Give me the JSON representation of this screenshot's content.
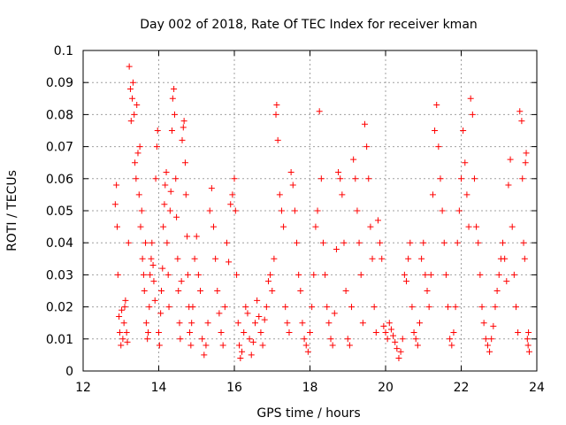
{
  "chart_data": {
    "type": "scatter",
    "title": "Day 002 of 2018, Rate Of TEC Index for receiver kman",
    "xlabel": "GPS time / hours",
    "ylabel": "ROTI / TECUs",
    "xlim": [
      12,
      24
    ],
    "ylim": [
      0,
      0.1
    ],
    "xticks": [
      "12",
      "14",
      "16",
      "18",
      "20",
      "22",
      "24"
    ],
    "yticks": [
      "0",
      "0.01",
      "0.02",
      "0.03",
      "0.04",
      "0.05",
      "0.06",
      "0.07",
      "0.08",
      "0.09",
      "0.1"
    ],
    "grid": true,
    "marker": "+",
    "series": [
      {
        "name": "ROTI",
        "color": "#ff0000",
        "points": [
          [
            12.85,
            0.052
          ],
          [
            12.88,
            0.058
          ],
          [
            12.9,
            0.045
          ],
          [
            12.92,
            0.03
          ],
          [
            12.95,
            0.017
          ],
          [
            12.97,
            0.012
          ],
          [
            13.0,
            0.008
          ],
          [
            13.02,
            0.019
          ],
          [
            13.05,
            0.01
          ],
          [
            13.08,
            0.015
          ],
          [
            13.1,
            0.02
          ],
          [
            13.12,
            0.022
          ],
          [
            13.15,
            0.012
          ],
          [
            13.17,
            0.009
          ],
          [
            13.2,
            0.04
          ],
          [
            13.22,
            0.095
          ],
          [
            13.25,
            0.088
          ],
          [
            13.27,
            0.078
          ],
          [
            13.3,
            0.085
          ],
          [
            13.32,
            0.09
          ],
          [
            13.35,
            0.08
          ],
          [
            13.37,
            0.065
          ],
          [
            13.4,
            0.06
          ],
          [
            13.42,
            0.083
          ],
          [
            13.45,
            0.068
          ],
          [
            13.48,
            0.055
          ],
          [
            13.5,
            0.07
          ],
          [
            13.52,
            0.045
          ],
          [
            13.55,
            0.05
          ],
          [
            13.57,
            0.035
          ],
          [
            13.6,
            0.03
          ],
          [
            13.62,
            0.025
          ],
          [
            13.65,
            0.04
          ],
          [
            13.67,
            0.015
          ],
          [
            13.7,
            0.01
          ],
          [
            13.72,
            0.012
          ],
          [
            13.75,
            0.02
          ],
          [
            13.77,
            0.03
          ],
          [
            13.8,
            0.035
          ],
          [
            13.82,
            0.04
          ],
          [
            13.85,
            0.033
          ],
          [
            13.87,
            0.028
          ],
          [
            13.9,
            0.022
          ],
          [
            13.92,
            0.06
          ],
          [
            13.95,
            0.07
          ],
          [
            13.97,
            0.075
          ],
          [
            14.0,
            0.012
          ],
          [
            14.02,
            0.008
          ],
          [
            14.05,
            0.018
          ],
          [
            14.07,
            0.025
          ],
          [
            14.1,
            0.032
          ],
          [
            14.12,
            0.045
          ],
          [
            14.15,
            0.052
          ],
          [
            14.17,
            0.058
          ],
          [
            14.2,
            0.062
          ],
          [
            14.22,
            0.04
          ],
          [
            14.25,
            0.03
          ],
          [
            14.27,
            0.02
          ],
          [
            14.3,
            0.05
          ],
          [
            14.32,
            0.056
          ],
          [
            14.35,
            0.075
          ],
          [
            14.37,
            0.085
          ],
          [
            14.4,
            0.088
          ],
          [
            14.42,
            0.08
          ],
          [
            14.45,
            0.06
          ],
          [
            14.47,
            0.048
          ],
          [
            14.5,
            0.035
          ],
          [
            14.52,
            0.025
          ],
          [
            14.55,
            0.015
          ],
          [
            14.57,
            0.01
          ],
          [
            14.6,
            0.028
          ],
          [
            14.62,
            0.072
          ],
          [
            14.65,
            0.076
          ],
          [
            14.67,
            0.078
          ],
          [
            14.7,
            0.065
          ],
          [
            14.72,
            0.055
          ],
          [
            14.75,
            0.042
          ],
          [
            14.77,
            0.03
          ],
          [
            14.8,
            0.02
          ],
          [
            14.82,
            0.012
          ],
          [
            14.85,
            0.008
          ],
          [
            14.87,
            0.015
          ],
          [
            14.9,
            0.02
          ],
          [
            14.95,
            0.035
          ],
          [
            15.0,
            0.042
          ],
          [
            15.05,
            0.03
          ],
          [
            15.1,
            0.025
          ],
          [
            15.15,
            0.01
          ],
          [
            15.2,
            0.005
          ],
          [
            15.25,
            0.008
          ],
          [
            15.3,
            0.015
          ],
          [
            15.35,
            0.05
          ],
          [
            15.4,
            0.057
          ],
          [
            15.45,
            0.045
          ],
          [
            15.5,
            0.035
          ],
          [
            15.55,
            0.025
          ],
          [
            15.6,
            0.018
          ],
          [
            15.65,
            0.012
          ],
          [
            15.7,
            0.008
          ],
          [
            15.75,
            0.02
          ],
          [
            15.8,
            0.04
          ],
          [
            15.85,
            0.034
          ],
          [
            15.9,
            0.052
          ],
          [
            15.95,
            0.055
          ],
          [
            16.0,
            0.06
          ],
          [
            16.03,
            0.05
          ],
          [
            16.06,
            0.03
          ],
          [
            16.1,
            0.015
          ],
          [
            16.13,
            0.008
          ],
          [
            16.16,
            0.004
          ],
          [
            16.2,
            0.006
          ],
          [
            16.25,
            0.012
          ],
          [
            16.3,
            0.02
          ],
          [
            16.35,
            0.018
          ],
          [
            16.4,
            0.01
          ],
          [
            16.45,
            0.005
          ],
          [
            16.5,
            0.009
          ],
          [
            16.55,
            0.015
          ],
          [
            16.6,
            0.022
          ],
          [
            16.65,
            0.017
          ],
          [
            16.7,
            0.012
          ],
          [
            16.75,
            0.008
          ],
          [
            16.8,
            0.016
          ],
          [
            16.85,
            0.02
          ],
          [
            16.9,
            0.028
          ],
          [
            16.95,
            0.03
          ],
          [
            17.0,
            0.025
          ],
          [
            17.05,
            0.035
          ],
          [
            17.1,
            0.08
          ],
          [
            17.12,
            0.083
          ],
          [
            17.15,
            0.072
          ],
          [
            17.2,
            0.055
          ],
          [
            17.25,
            0.05
          ],
          [
            17.3,
            0.045
          ],
          [
            17.35,
            0.02
          ],
          [
            17.4,
            0.015
          ],
          [
            17.45,
            0.012
          ],
          [
            17.5,
            0.062
          ],
          [
            17.55,
            0.058
          ],
          [
            17.6,
            0.05
          ],
          [
            17.65,
            0.04
          ],
          [
            17.7,
            0.03
          ],
          [
            17.75,
            0.025
          ],
          [
            17.8,
            0.015
          ],
          [
            17.85,
            0.01
          ],
          [
            17.9,
            0.008
          ],
          [
            17.95,
            0.006
          ],
          [
            18.0,
            0.012
          ],
          [
            18.05,
            0.02
          ],
          [
            18.1,
            0.03
          ],
          [
            18.15,
            0.045
          ],
          [
            18.2,
            0.05
          ],
          [
            18.25,
            0.081
          ],
          [
            18.3,
            0.06
          ],
          [
            18.35,
            0.04
          ],
          [
            18.4,
            0.03
          ],
          [
            18.45,
            0.02
          ],
          [
            18.5,
            0.015
          ],
          [
            18.55,
            0.01
          ],
          [
            18.6,
            0.008
          ],
          [
            18.65,
            0.018
          ],
          [
            18.7,
            0.038
          ],
          [
            18.75,
            0.062
          ],
          [
            18.8,
            0.06
          ],
          [
            18.85,
            0.055
          ],
          [
            18.9,
            0.04
          ],
          [
            18.95,
            0.025
          ],
          [
            19.0,
            0.01
          ],
          [
            19.05,
            0.008
          ],
          [
            19.1,
            0.02
          ],
          [
            19.15,
            0.066
          ],
          [
            19.2,
            0.06
          ],
          [
            19.25,
            0.05
          ],
          [
            19.3,
            0.04
          ],
          [
            19.35,
            0.03
          ],
          [
            19.4,
            0.015
          ],
          [
            19.45,
            0.077
          ],
          [
            19.5,
            0.07
          ],
          [
            19.55,
            0.06
          ],
          [
            19.6,
            0.045
          ],
          [
            19.65,
            0.035
          ],
          [
            19.7,
            0.02
          ],
          [
            19.75,
            0.012
          ],
          [
            19.8,
            0.047
          ],
          [
            19.85,
            0.04
          ],
          [
            19.9,
            0.035
          ],
          [
            19.95,
            0.014
          ],
          [
            20.0,
            0.012
          ],
          [
            20.05,
            0.01
          ],
          [
            20.1,
            0.015
          ],
          [
            20.15,
            0.013
          ],
          [
            20.2,
            0.011
          ],
          [
            20.25,
            0.009
          ],
          [
            20.3,
            0.007
          ],
          [
            20.35,
            0.004
          ],
          [
            20.4,
            0.006
          ],
          [
            20.45,
            0.01
          ],
          [
            20.5,
            0.03
          ],
          [
            20.55,
            0.028
          ],
          [
            20.6,
            0.035
          ],
          [
            20.65,
            0.04
          ],
          [
            20.7,
            0.02
          ],
          [
            20.75,
            0.012
          ],
          [
            20.8,
            0.01
          ],
          [
            20.85,
            0.008
          ],
          [
            20.9,
            0.015
          ],
          [
            20.95,
            0.035
          ],
          [
            21.0,
            0.04
          ],
          [
            21.05,
            0.03
          ],
          [
            21.1,
            0.025
          ],
          [
            21.15,
            0.02
          ],
          [
            21.2,
            0.03
          ],
          [
            21.25,
            0.055
          ],
          [
            21.3,
            0.075
          ],
          [
            21.35,
            0.083
          ],
          [
            21.4,
            0.07
          ],
          [
            21.45,
            0.06
          ],
          [
            21.5,
            0.05
          ],
          [
            21.55,
            0.04
          ],
          [
            21.6,
            0.03
          ],
          [
            21.65,
            0.02
          ],
          [
            21.7,
            0.01
          ],
          [
            21.75,
            0.008
          ],
          [
            21.8,
            0.012
          ],
          [
            21.85,
            0.02
          ],
          [
            21.9,
            0.04
          ],
          [
            21.95,
            0.05
          ],
          [
            22.0,
            0.06
          ],
          [
            22.05,
            0.075
          ],
          [
            22.1,
            0.065
          ],
          [
            22.15,
            0.055
          ],
          [
            22.2,
            0.045
          ],
          [
            22.25,
            0.085
          ],
          [
            22.3,
            0.08
          ],
          [
            22.35,
            0.06
          ],
          [
            22.4,
            0.045
          ],
          [
            22.45,
            0.04
          ],
          [
            22.5,
            0.03
          ],
          [
            22.55,
            0.02
          ],
          [
            22.6,
            0.015
          ],
          [
            22.65,
            0.01
          ],
          [
            22.7,
            0.008
          ],
          [
            22.75,
            0.006
          ],
          [
            22.8,
            0.01
          ],
          [
            22.85,
            0.014
          ],
          [
            22.9,
            0.02
          ],
          [
            22.95,
            0.025
          ],
          [
            23.0,
            0.03
          ],
          [
            23.05,
            0.035
          ],
          [
            23.1,
            0.04
          ],
          [
            23.15,
            0.035
          ],
          [
            23.2,
            0.028
          ],
          [
            23.25,
            0.058
          ],
          [
            23.3,
            0.066
          ],
          [
            23.35,
            0.045
          ],
          [
            23.4,
            0.03
          ],
          [
            23.45,
            0.02
          ],
          [
            23.5,
            0.012
          ],
          [
            23.55,
            0.081
          ],
          [
            23.6,
            0.078
          ],
          [
            23.62,
            0.06
          ],
          [
            23.65,
            0.04
          ],
          [
            23.68,
            0.035
          ],
          [
            23.7,
            0.065
          ],
          [
            23.72,
            0.068
          ],
          [
            23.75,
            0.01
          ],
          [
            23.77,
            0.008
          ],
          [
            23.78,
            0.012
          ],
          [
            23.8,
            0.006
          ]
        ]
      }
    ]
  }
}
